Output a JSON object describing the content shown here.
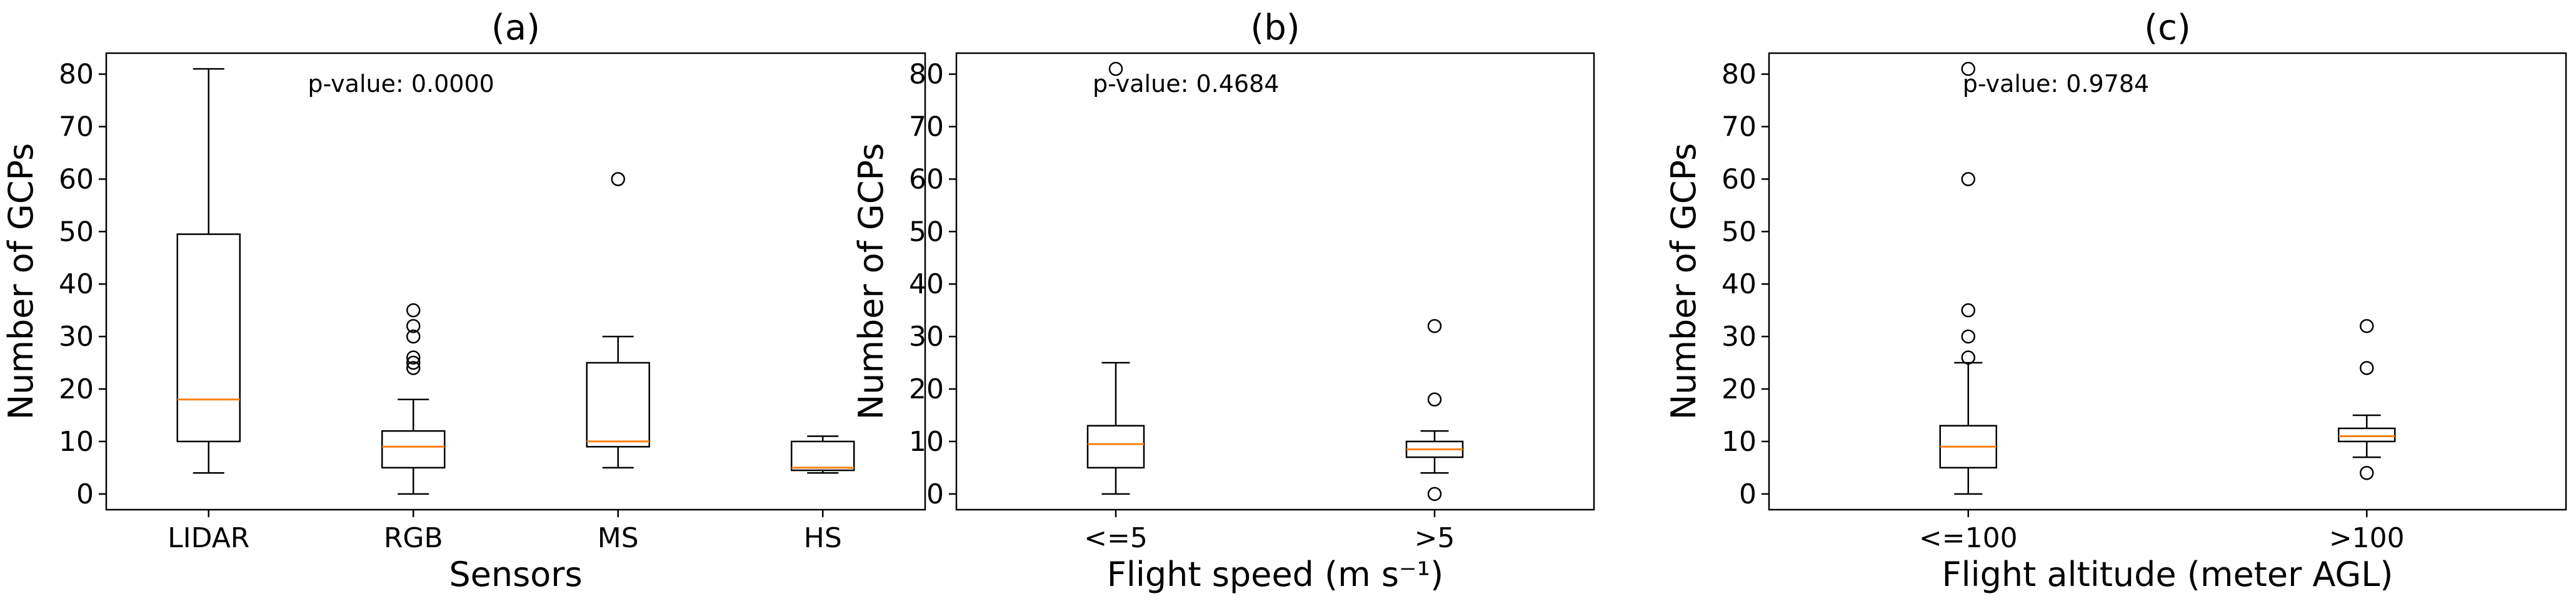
{
  "colors": {
    "median": "#ff7f0e",
    "box": "#000000",
    "background": "#ffffff"
  },
  "chart_data": [
    {
      "type": "box",
      "panel_title": "(a)",
      "xlabel": "Sensors",
      "ylabel": "Number of GCPs",
      "ylim": [
        -3,
        84
      ],
      "yticks": [
        0,
        10,
        20,
        30,
        40,
        50,
        60,
        70,
        80
      ],
      "annotation": "p-value: 0.0000",
      "categories": [
        "LIDAR",
        "RGB",
        "MS",
        "HS"
      ],
      "boxes": [
        {
          "whisker_low": 4,
          "q1": 10,
          "median": 18,
          "q3": 49.5,
          "whisker_high": 81,
          "fliers": []
        },
        {
          "whisker_low": 0,
          "q1": 5,
          "median": 9,
          "q3": 12,
          "whisker_high": 18,
          "fliers": [
            24,
            25,
            26,
            30,
            32,
            35
          ]
        },
        {
          "whisker_low": 5,
          "q1": 9,
          "median": 10,
          "q3": 25,
          "whisker_high": 30,
          "fliers": [
            60
          ]
        },
        {
          "whisker_low": 4,
          "q1": 4.5,
          "median": 5,
          "q3": 10,
          "whisker_high": 11,
          "fliers": []
        }
      ]
    },
    {
      "type": "box",
      "panel_title": "(b)",
      "xlabel": "Flight speed (m s⁻¹)",
      "ylabel": "Number of GCPs",
      "ylim": [
        -3,
        84
      ],
      "yticks": [
        0,
        10,
        20,
        30,
        40,
        50,
        60,
        70,
        80
      ],
      "annotation": "p-value: 0.4684",
      "categories": [
        "<=5",
        ">5"
      ],
      "boxes": [
        {
          "whisker_low": 0,
          "q1": 5,
          "median": 9.5,
          "q3": 13,
          "whisker_high": 25,
          "fliers": [
            81
          ]
        },
        {
          "whisker_low": 4,
          "q1": 7,
          "median": 8.5,
          "q3": 10,
          "whisker_high": 12,
          "fliers": [
            0,
            18,
            32
          ]
        }
      ]
    },
    {
      "type": "box",
      "panel_title": "(c)",
      "xlabel": "Flight altitude (meter AGL)",
      "ylabel": "Number of GCPs",
      "ylim": [
        -3,
        84
      ],
      "yticks": [
        0,
        10,
        20,
        30,
        40,
        50,
        60,
        70,
        80
      ],
      "annotation": "p-value: 0.9784",
      "categories": [
        "<=100",
        ">100"
      ],
      "boxes": [
        {
          "whisker_low": 0,
          "q1": 5,
          "median": 9,
          "q3": 13,
          "whisker_high": 25,
          "fliers": [
            26,
            30,
            35,
            60,
            81
          ]
        },
        {
          "whisker_low": 7,
          "q1": 10,
          "median": 11,
          "q3": 12.5,
          "whisker_high": 15,
          "fliers": [
            4,
            24,
            32
          ]
        }
      ]
    }
  ]
}
